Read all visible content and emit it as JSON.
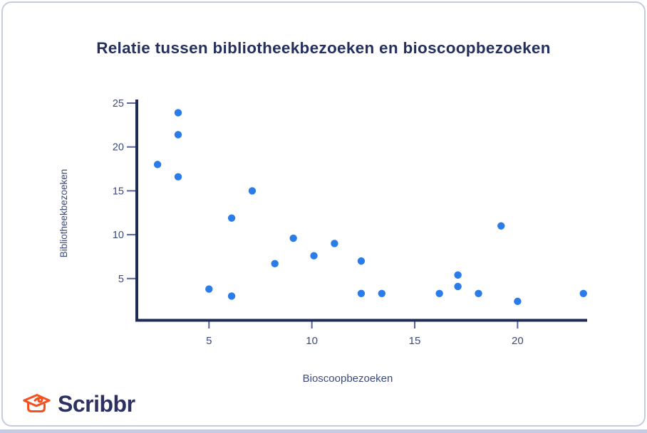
{
  "colors": {
    "navy": "#242f5e",
    "axis": "#1f2b58",
    "tick": "#56639a",
    "tick_label": "#3c4b7d",
    "dot": "#2a7de8",
    "border": "#c6ccdf",
    "orange": "#f4511e",
    "brand": "#2c3161"
  },
  "branding": {
    "name": "Scribbr",
    "icon": "graduation-cap-icon"
  },
  "chart_data": {
    "type": "scatter",
    "title": "Relatie tussen bibliotheekbezoeken en bioscoopbezoeken",
    "xlabel": "Bioscoopbezoeken",
    "ylabel": "Bibliotheekbezoeken",
    "xticks": [
      5,
      10,
      15,
      20
    ],
    "yticks": [
      5,
      10,
      15,
      20,
      25
    ],
    "xlim": [
      1.5,
      23.4
    ],
    "ylim": [
      0,
      25.3
    ],
    "grid": false,
    "legend": false,
    "points": [
      {
        "x": 2.5,
        "y": 18.0
      },
      {
        "x": 3.5,
        "y": 23.9
      },
      {
        "x": 3.5,
        "y": 21.4
      },
      {
        "x": 3.5,
        "y": 16.6
      },
      {
        "x": 5.0,
        "y": 3.8
      },
      {
        "x": 6.1,
        "y": 11.9
      },
      {
        "x": 6.1,
        "y": 3.0
      },
      {
        "x": 7.1,
        "y": 15.0
      },
      {
        "x": 8.2,
        "y": 6.7
      },
      {
        "x": 9.1,
        "y": 9.6
      },
      {
        "x": 10.1,
        "y": 7.6
      },
      {
        "x": 11.1,
        "y": 9.0
      },
      {
        "x": 12.4,
        "y": 7.0
      },
      {
        "x": 12.4,
        "y": 3.3
      },
      {
        "x": 13.4,
        "y": 3.3
      },
      {
        "x": 16.2,
        "y": 3.3
      },
      {
        "x": 17.1,
        "y": 5.4
      },
      {
        "x": 17.1,
        "y": 4.1
      },
      {
        "x": 18.1,
        "y": 3.3
      },
      {
        "x": 19.2,
        "y": 11.0
      },
      {
        "x": 20.0,
        "y": 2.4
      },
      {
        "x": 23.2,
        "y": 3.3
      }
    ]
  }
}
